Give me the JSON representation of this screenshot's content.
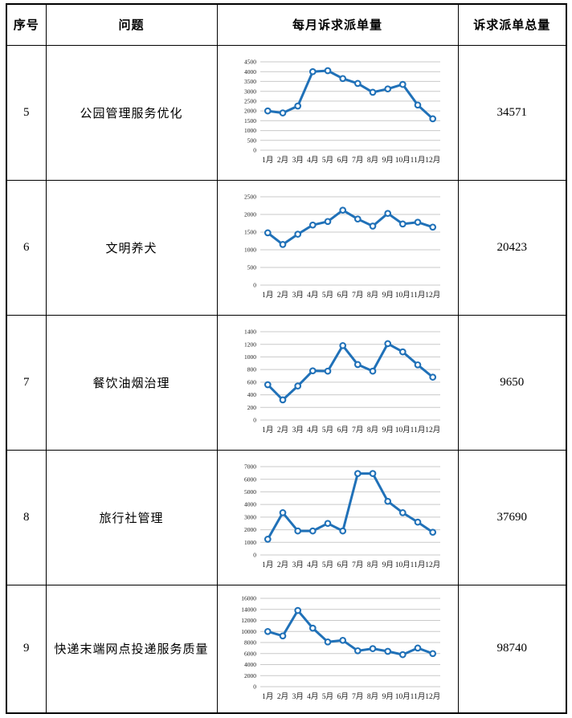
{
  "table": {
    "headers": [
      "序号",
      "问题",
      "每月诉求派单量",
      "诉求派单总量"
    ]
  },
  "months": [
    "1月",
    "2月",
    "3月",
    "4月",
    "5月",
    "6月",
    "7月",
    "8月",
    "9月",
    "10月",
    "11月",
    "12月"
  ],
  "colors": {
    "line": "#2071b8",
    "marker_fill": "#ffffff",
    "gridline": "#c9c9c9",
    "text": "#1a1a1a",
    "table_border": "#000000"
  },
  "rows": [
    {
      "id": "5",
      "problem": "公园管理服务优化",
      "total": "34571"
    },
    {
      "id": "6",
      "problem": "文明养犬",
      "total": "20423"
    },
    {
      "id": "7",
      "problem": "餐饮油烟治理",
      "total": "9650"
    },
    {
      "id": "8",
      "problem": "旅行社管理",
      "total": "37690"
    },
    {
      "id": "9",
      "problem": "快递末端网点投递服务质量",
      "total": "98740"
    }
  ],
  "chart_data": [
    {
      "type": "line",
      "title": "公园管理服务优化 每月诉求派单量",
      "categories": [
        "1月",
        "2月",
        "3月",
        "4月",
        "5月",
        "6月",
        "7月",
        "8月",
        "9月",
        "10月",
        "11月",
        "12月"
      ],
      "values": [
        2000,
        1900,
        2250,
        4000,
        4050,
        3650,
        3400,
        2950,
        3120,
        3350,
        2300,
        1600
      ],
      "xlabel": "",
      "ylabel": "",
      "ylim": [
        0,
        4500
      ],
      "ytick": 500,
      "grid": true,
      "legend": false,
      "marker": "circle"
    },
    {
      "type": "line",
      "title": "文明养犬 每月诉求派单量",
      "categories": [
        "1月",
        "2月",
        "3月",
        "4月",
        "5月",
        "6月",
        "7月",
        "8月",
        "9月",
        "10月",
        "11月",
        "12月"
      ],
      "values": [
        1480,
        1150,
        1440,
        1700,
        1800,
        2120,
        1870,
        1670,
        2030,
        1730,
        1780,
        1640
      ],
      "xlabel": "",
      "ylabel": "",
      "ylim": [
        0,
        2500
      ],
      "ytick": 500,
      "grid": true,
      "legend": false,
      "marker": "circle"
    },
    {
      "type": "line",
      "title": "餐饮油烟治理 每月诉求派单量",
      "categories": [
        "1月",
        "2月",
        "3月",
        "4月",
        "5月",
        "6月",
        "7月",
        "8月",
        "9月",
        "10月",
        "11月",
        "12月"
      ],
      "values": [
        560,
        320,
        540,
        780,
        775,
        1180,
        880,
        775,
        1210,
        1080,
        875,
        680
      ],
      "xlabel": "",
      "ylabel": "",
      "ylim": [
        0,
        1400
      ],
      "ytick": 200,
      "grid": true,
      "legend": false,
      "marker": "circle"
    },
    {
      "type": "line",
      "title": "旅行社管理 每月诉求派单量",
      "categories": [
        "1月",
        "2月",
        "3月",
        "4月",
        "5月",
        "6月",
        "7月",
        "8月",
        "9月",
        "10月",
        "11月",
        "12月"
      ],
      "values": [
        1250,
        3350,
        1900,
        1900,
        2500,
        1900,
        6450,
        6450,
        4250,
        3350,
        2600,
        1800
      ],
      "xlabel": "",
      "ylabel": "",
      "ylim": [
        0,
        7000
      ],
      "ytick": 1000,
      "grid": true,
      "legend": false,
      "marker": "circle"
    },
    {
      "type": "line",
      "title": "快递末端网点投递服务质量 每月诉求派单量",
      "categories": [
        "1月",
        "2月",
        "3月",
        "4月",
        "5月",
        "6月",
        "7月",
        "8月",
        "9月",
        "10月",
        "11月",
        "12月"
      ],
      "values": [
        10000,
        9200,
        13800,
        10600,
        8100,
        8400,
        6500,
        6900,
        6400,
        5800,
        7000,
        6000
      ],
      "xlabel": "",
      "ylabel": "",
      "ylim": [
        0,
        16000
      ],
      "ytick": 2000,
      "grid": true,
      "legend": false,
      "marker": "circle"
    }
  ]
}
